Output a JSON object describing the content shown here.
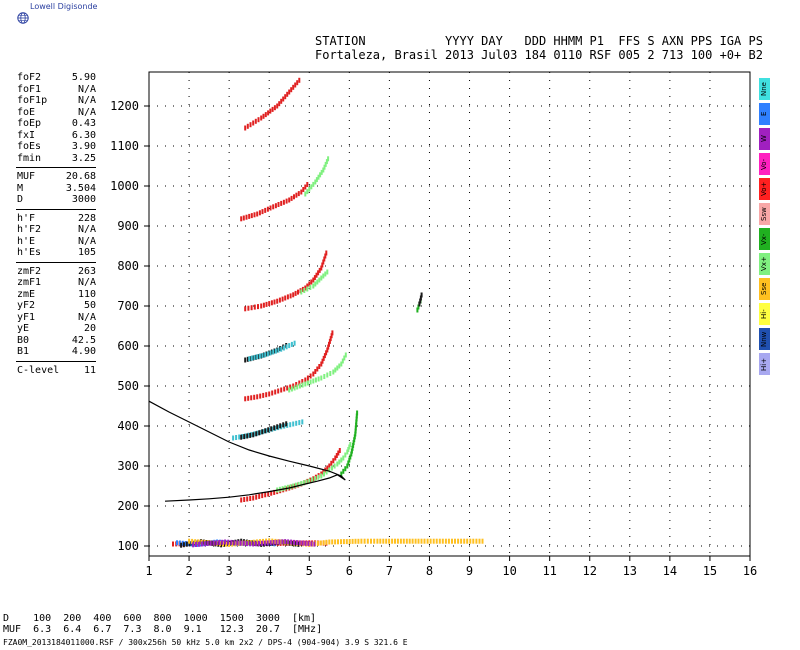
{
  "logo": {
    "text": "Lowell Digisonde",
    "icon": "globe-icon"
  },
  "header": {
    "line1": "STATION           YYYY DAY   DDD HHMM P1  FFS S AXN PPS IGA PS",
    "line2": "Fortaleza, Brasil 2013 Jul03 184 0110 RSF 005 2 713 100 +0+ B2"
  },
  "params": [
    {
      "label": "foF2",
      "value": "5.90"
    },
    {
      "label": "foF1",
      "value": "N/A"
    },
    {
      "label": "foF1p",
      "value": "N/A"
    },
    {
      "label": "foE",
      "value": "N/A"
    },
    {
      "label": "foEp",
      "value": "0.43"
    },
    {
      "label": "fxI",
      "value": "6.30"
    },
    {
      "label": "foEs",
      "value": "3.90"
    },
    {
      "label": "fmin",
      "value": "3.25"
    },
    {
      "sep": true
    },
    {
      "label": "MUF",
      "value": "20.68"
    },
    {
      "label": "M",
      "value": "3.504"
    },
    {
      "label": "D",
      "value": "3000"
    },
    {
      "sep": true
    },
    {
      "label": "h'F",
      "value": "228"
    },
    {
      "label": "h'F2",
      "value": "N/A"
    },
    {
      "label": "h'E",
      "value": "N/A"
    },
    {
      "label": "h'Es",
      "value": "105"
    },
    {
      "sep": true
    },
    {
      "label": "zmF2",
      "value": "263"
    },
    {
      "label": "zmF1",
      "value": "N/A"
    },
    {
      "label": "zmE",
      "value": "110"
    },
    {
      "label": "yF2",
      "value": "50"
    },
    {
      "label": "yF1",
      "value": "N/A"
    },
    {
      "label": "yE",
      "value": "20"
    },
    {
      "label": "B0",
      "value": "42.5"
    },
    {
      "label": "B1",
      "value": "4.90"
    },
    {
      "sep": true
    },
    {
      "label": "C-level",
      "value": "11"
    }
  ],
  "legend": [
    {
      "label": "Nne",
      "color": "#40e0e0"
    },
    {
      "label": "E",
      "color": "#2f80ff"
    },
    {
      "label": "W",
      "color": "#a020c0"
    },
    {
      "label": "Vo-",
      "color": "#ff20c0"
    },
    {
      "label": "Vo+",
      "color": "#ff2020"
    },
    {
      "label": "Ssw",
      "color": "#f8a8a8"
    },
    {
      "label": "Vx-",
      "color": "#20b020"
    },
    {
      "label": "Vx+",
      "color": "#80f080"
    },
    {
      "label": "Sse",
      "color": "#ffc020"
    },
    {
      "label": "Hi-",
      "color": "#ffff40"
    },
    {
      "label": "Nnw",
      "color": "#2050b0"
    },
    {
      "label": "Hi+",
      "color": "#a8a8f0"
    }
  ],
  "footer": {
    "line1": "D    100  200  400  600  800  1000  1500  3000  [km]",
    "line2": "MUF  6.3  6.4  6.7  7.3  8.0  9.1   12.3  20.7  [MHz]",
    "file": "FZA0M_2013184011000.RSF / 300x256h 50 kHz 5.0 km 2x2 / DPS-4 (904-904)  3.9 S 321.6 E"
  },
  "chart_data": {
    "type": "scatter",
    "title": "",
    "xlabel": "",
    "ylabel": "",
    "xlim": [
      1,
      16
    ],
    "ylim": [
      75,
      1285
    ],
    "x_ticks": [
      1,
      2,
      3,
      4,
      5,
      6,
      7,
      8,
      9,
      10,
      11,
      12,
      13,
      14,
      15,
      16
    ],
    "y_ticks": [
      100,
      200,
      300,
      400,
      500,
      600,
      700,
      800,
      900,
      1000,
      1100,
      1200
    ],
    "grid": true,
    "traces": [
      {
        "color": "#e02020",
        "f": [
          3.3,
          3.6,
          3.9,
          4.2,
          4.5,
          4.8,
          5.1,
          5.3,
          5.5,
          5.65,
          5.8
        ],
        "h": [
          215,
          220,
          228,
          236,
          245,
          255,
          268,
          280,
          300,
          320,
          345
        ]
      },
      {
        "color": "#80f080",
        "f": [
          4.2,
          4.6,
          5.0,
          5.3,
          5.5,
          5.7,
          5.85,
          5.95,
          6.05
        ],
        "h": [
          240,
          250,
          262,
          275,
          290,
          305,
          320,
          335,
          360
        ]
      },
      {
        "color": "#20b020",
        "f": [
          5.8,
          5.95,
          6.05,
          6.15,
          6.2
        ],
        "h": [
          280,
          300,
          330,
          380,
          440
        ]
      },
      {
        "color": "#e02020",
        "f": [
          3.4,
          3.7,
          4.0,
          4.3,
          4.6,
          4.9,
          5.1,
          5.3,
          5.45,
          5.6
        ],
        "h": [
          468,
          473,
          480,
          490,
          500,
          515,
          530,
          555,
          590,
          640
        ]
      },
      {
        "color": "#80f080",
        "f": [
          4.5,
          4.9,
          5.3,
          5.6,
          5.8,
          5.95
        ],
        "h": [
          490,
          505,
          520,
          535,
          555,
          585
        ]
      },
      {
        "color": "#1a1a1a",
        "f": [
          3.4,
          3.8,
          4.2,
          4.5
        ],
        "h": [
          565,
          575,
          590,
          605
        ]
      },
      {
        "color": "#40c0d0",
        "f": [
          3.5,
          3.9,
          4.3,
          4.7
        ],
        "h": [
          568,
          578,
          592,
          610
        ]
      },
      {
        "color": "#e02020",
        "f": [
          3.4,
          3.8,
          4.2,
          4.6,
          4.9,
          5.1,
          5.3,
          5.45
        ],
        "h": [
          693,
          700,
          712,
          728,
          745,
          765,
          795,
          840
        ]
      },
      {
        "color": "#80f080",
        "f": [
          4.8,
          5.1,
          5.3,
          5.5
        ],
        "h": [
          735,
          750,
          770,
          790
        ]
      },
      {
        "color": "#e02020",
        "f": [
          3.3,
          3.7,
          4.1,
          4.5,
          4.8,
          5.0
        ],
        "h": [
          918,
          930,
          948,
          965,
          985,
          1010
        ]
      },
      {
        "color": "#80f080",
        "f": [
          4.9,
          5.15,
          5.35,
          5.5
        ],
        "h": [
          980,
          1010,
          1040,
          1075
        ]
      },
      {
        "color": "#e02020",
        "f": [
          3.4,
          3.8,
          4.2,
          4.5,
          4.8
        ],
        "h": [
          1145,
          1170,
          1200,
          1235,
          1270
        ]
      },
      {
        "color": "#40c0d0",
        "f": [
          3.1,
          3.4,
          3.7,
          4.0,
          4.3,
          4.6,
          4.9
        ],
        "h": [
          370,
          375,
          382,
          390,
          398,
          405,
          412
        ]
      },
      {
        "color": "#1a1a1a",
        "f": [
          3.3,
          3.6,
          3.9,
          4.2,
          4.5
        ],
        "h": [
          372,
          378,
          388,
          398,
          408
        ]
      },
      {
        "color": "#e02020",
        "f": [
          1.6,
          2.0,
          2.5,
          3.0,
          3.5,
          4.0,
          4.5,
          5.0,
          5.5
        ],
        "h": [
          105,
          106,
          108,
          107,
          108,
          106,
          107,
          108,
          107
        ]
      },
      {
        "color": "#2f80ff",
        "f": [
          1.7,
          2.2,
          2.7,
          3.2,
          3.7,
          4.2
        ],
        "h": [
          108,
          104,
          110,
          106,
          109,
          105
        ]
      },
      {
        "color": "#1a1a1a",
        "f": [
          1.8,
          2.3,
          2.8,
          3.3,
          3.8,
          4.3,
          4.8
        ],
        "h": [
          102,
          111,
          103,
          112,
          104,
          110,
          103
        ]
      },
      {
        "color": "#ffc020",
        "f": [
          2.0,
          3.0,
          4.0,
          5.0,
          5.5,
          6.3,
          6.7,
          7.8,
          9.4
        ],
        "h": [
          112,
          104,
          113,
          104,
          110,
          112,
          112,
          112,
          112
        ]
      },
      {
        "color": "#a020c0",
        "f": [
          2.1,
          2.9,
          3.6,
          4.4,
          5.2
        ],
        "h": [
          103,
          110,
          105,
          111,
          104
        ]
      },
      {
        "color": "#20b020",
        "f": [
          7.7,
          7.8
        ],
        "h": [
          690,
          720
        ]
      },
      {
        "color": "#1a1a1a",
        "f": [
          7.75,
          7.82
        ],
        "h": [
          705,
          735
        ]
      }
    ],
    "profile": {
      "color": "#000000",
      "f": [
        1.4,
        2.0,
        2.5,
        3.0,
        3.5,
        4.0,
        4.5,
        4.9,
        5.2,
        5.5,
        5.7,
        5.9,
        5.8,
        5.5,
        5.0,
        4.5,
        4.0,
        3.5,
        3.0,
        2.5,
        2.0,
        1.5,
        1.0
      ],
      "h": [
        212,
        215,
        218,
        222,
        228,
        236,
        245,
        255,
        262,
        270,
        278,
        265,
        275,
        287,
        300,
        312,
        325,
        340,
        360,
        385,
        410,
        435,
        462
      ]
    }
  }
}
